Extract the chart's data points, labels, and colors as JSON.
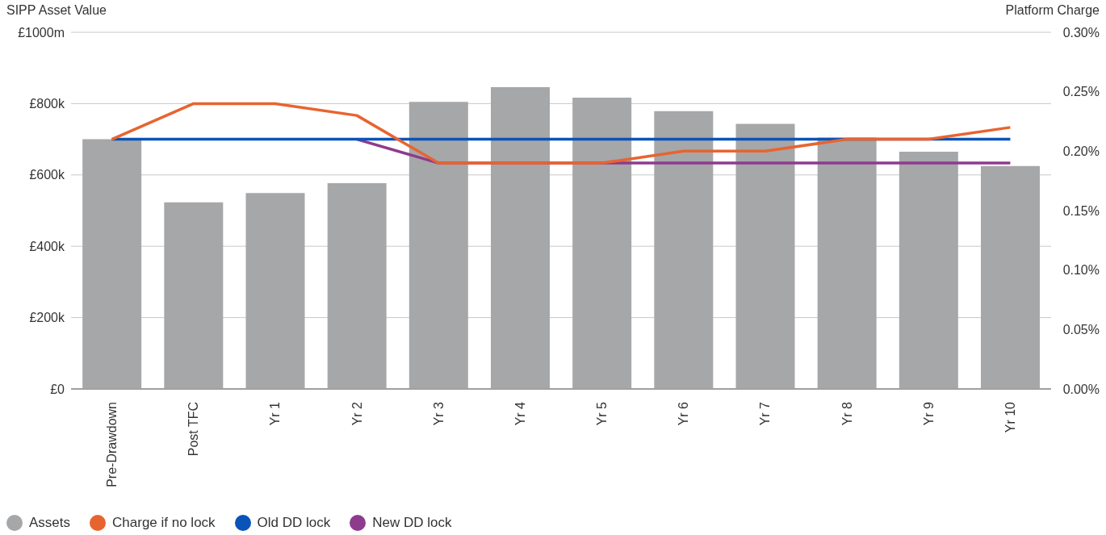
{
  "chart_data": {
    "type": "bar",
    "ylabel": "SIPP Asset Value",
    "y2label": "Platform Charge",
    "categories": [
      "Pre-Drawdown",
      "Post TFC",
      "Yr 1",
      "Yr 2",
      "Yr 3",
      "Yr 4",
      "Yr 5",
      "Yr 6",
      "Yr 7",
      "Yr 8",
      "Yr 9",
      "Yr 10"
    ],
    "series": [
      {
        "name": "Assets",
        "color": "#a6a7a9",
        "values": [
          700,
          523,
          549,
          577,
          805,
          846,
          817,
          779,
          743,
          705,
          665,
          625
        ]
      },
      {
        "name": "Charge if no lock",
        "type": "line",
        "axis": "y2",
        "color": "#e8642f",
        "values": [
          0.21,
          0.24,
          0.24,
          0.23,
          0.19,
          0.19,
          0.19,
          0.2,
          0.2,
          0.21,
          0.21,
          0.22
        ]
      },
      {
        "name": "Old DD lock",
        "type": "line",
        "axis": "y2",
        "color": "#0a53b8",
        "values": [
          0.21,
          0.21,
          0.21,
          0.21,
          0.21,
          0.21,
          0.21,
          0.21,
          0.21,
          0.21,
          0.21,
          0.21
        ]
      },
      {
        "name": "New DD lock",
        "type": "line",
        "axis": "y2",
        "color": "#8e3b8e",
        "values": [
          null,
          null,
          null,
          0.21,
          0.19,
          0.19,
          0.19,
          0.19,
          0.19,
          0.19,
          0.19,
          0.19
        ]
      }
    ],
    "ylim": [
      0,
      1000
    ],
    "yticks": [
      {
        "value": 0,
        "label": "£0"
      },
      {
        "value": 200,
        "label": "£200k"
      },
      {
        "value": 400,
        "label": "£400k"
      },
      {
        "value": 600,
        "label": "£600k"
      },
      {
        "value": 800,
        "label": "£800k"
      },
      {
        "value": 1000,
        "label": "£1000m"
      }
    ],
    "y2lim": [
      0,
      0.3
    ],
    "y2ticks": [
      {
        "value": 0,
        "label": "0.00%"
      },
      {
        "value": 0.05,
        "label": "0.05%"
      },
      {
        "value": 0.1,
        "label": "0.10%"
      },
      {
        "value": 0.15,
        "label": "0.15%"
      },
      {
        "value": 0.2,
        "label": "0.20%"
      },
      {
        "value": 0.25,
        "label": "0.25%"
      },
      {
        "value": 0.3,
        "label": "0.30%"
      }
    ],
    "grid": "y",
    "legend": "bottom left",
    "marker": "none",
    "line_style": "solid"
  }
}
